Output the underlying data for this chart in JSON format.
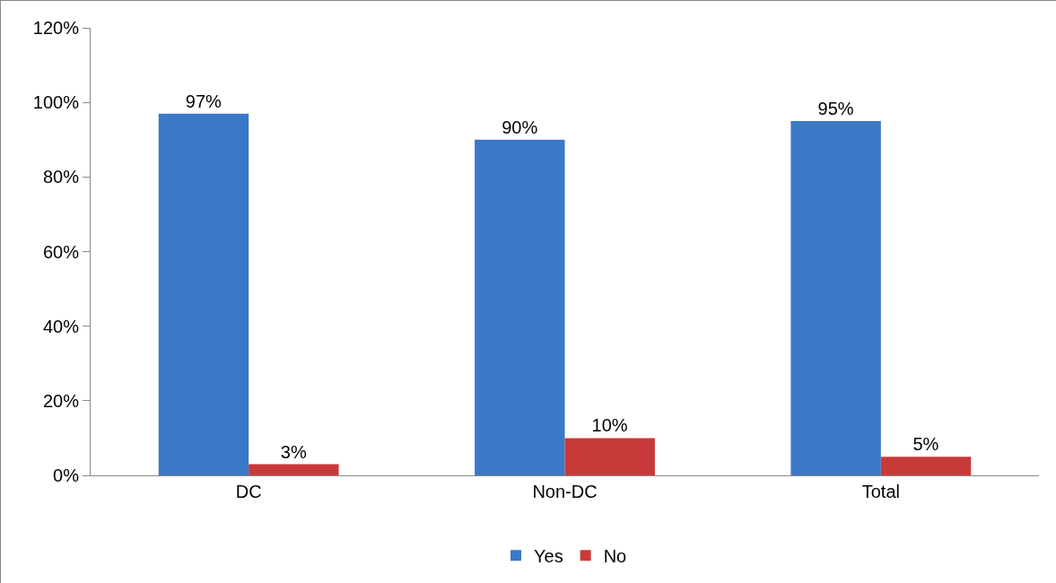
{
  "chart_data": {
    "type": "bar",
    "categories": [
      "DC",
      "Non-DC",
      "Total"
    ],
    "series": [
      {
        "name": "Yes",
        "color": "#3a78c8",
        "values": [
          97,
          90,
          95
        ],
        "value_labels": [
          "97%",
          "90%",
          "95%"
        ]
      },
      {
        "name": "No",
        "color": "#c83a3a",
        "values": [
          3,
          10,
          5
        ],
        "value_labels": [
          "3%",
          "10%",
          "5%"
        ]
      }
    ],
    "ylim": [
      0,
      120
    ],
    "yticks": [
      {
        "value": 0,
        "label": "0%"
      },
      {
        "value": 20,
        "label": "20%"
      },
      {
        "value": 40,
        "label": "40%"
      },
      {
        "value": 60,
        "label": "60%"
      },
      {
        "value": 80,
        "label": "80%"
      },
      {
        "value": 100,
        "label": "100%"
      },
      {
        "value": 120,
        "label": "120%"
      }
    ],
    "grid": false,
    "legend": "bottom"
  }
}
